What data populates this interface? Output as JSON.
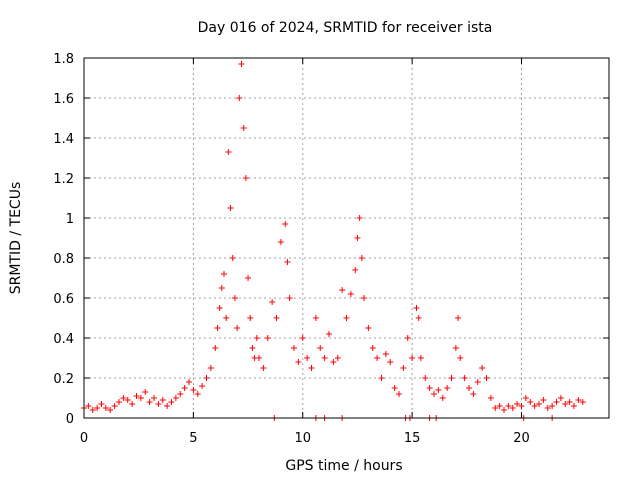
{
  "chart_data": {
    "type": "scatter",
    "title": "Day 016 of 2024, SRMTID for receiver ista",
    "xlabel": "GPS time / hours",
    "ylabel": "SRMTID / TECUs",
    "xlim": [
      0,
      24
    ],
    "ylim": [
      0,
      1.8
    ],
    "xticks": [
      0,
      5,
      10,
      15,
      20
    ],
    "yticks": [
      0,
      0.2,
      0.4,
      0.6,
      0.8,
      1,
      1.2,
      1.4,
      1.6,
      1.8
    ],
    "xtick_labels": [
      "0",
      "5",
      "10",
      "15",
      "20"
    ],
    "ytick_labels": [
      "0",
      "0.2",
      "0.4",
      "0.6",
      "0.8",
      "1",
      "1.2",
      "1.4",
      "1.6",
      "1.8"
    ],
    "grid": true,
    "marker": "plus",
    "color": "#ff0000",
    "series": [
      {
        "name": "SRMTID",
        "points": [
          [
            0.0,
            0.05
          ],
          [
            0.2,
            0.06
          ],
          [
            0.4,
            0.04
          ],
          [
            0.6,
            0.05
          ],
          [
            0.8,
            0.07
          ],
          [
            1.0,
            0.05
          ],
          [
            1.2,
            0.04
          ],
          [
            1.4,
            0.06
          ],
          [
            1.6,
            0.08
          ],
          [
            1.8,
            0.1
          ],
          [
            2.0,
            0.09
          ],
          [
            2.2,
            0.07
          ],
          [
            2.4,
            0.11
          ],
          [
            2.6,
            0.1
          ],
          [
            2.8,
            0.13
          ],
          [
            3.0,
            0.08
          ],
          [
            3.2,
            0.1
          ],
          [
            3.4,
            0.07
          ],
          [
            3.6,
            0.09
          ],
          [
            3.8,
            0.06
          ],
          [
            4.0,
            0.08
          ],
          [
            4.2,
            0.1
          ],
          [
            4.4,
            0.12
          ],
          [
            4.6,
            0.15
          ],
          [
            4.8,
            0.18
          ],
          [
            5.0,
            0.14
          ],
          [
            5.2,
            0.12
          ],
          [
            5.4,
            0.16
          ],
          [
            5.6,
            0.2
          ],
          [
            5.8,
            0.25
          ],
          [
            6.0,
            0.35
          ],
          [
            6.1,
            0.45
          ],
          [
            6.2,
            0.55
          ],
          [
            6.3,
            0.65
          ],
          [
            6.4,
            0.72
          ],
          [
            6.5,
            0.5
          ],
          [
            6.6,
            1.33
          ],
          [
            6.7,
            1.05
          ],
          [
            6.8,
            0.8
          ],
          [
            6.9,
            0.6
          ],
          [
            7.0,
            0.45
          ],
          [
            7.1,
            1.6
          ],
          [
            7.2,
            1.77
          ],
          [
            7.3,
            1.45
          ],
          [
            7.4,
            1.2
          ],
          [
            7.5,
            0.7
          ],
          [
            7.6,
            0.5
          ],
          [
            7.7,
            0.35
          ],
          [
            7.8,
            0.3
          ],
          [
            7.9,
            0.4
          ],
          [
            8.0,
            0.3
          ],
          [
            8.2,
            0.25
          ],
          [
            8.4,
            0.4
          ],
          [
            8.6,
            0.58
          ],
          [
            8.8,
            0.5
          ],
          [
            9.0,
            0.88
          ],
          [
            9.2,
            0.97
          ],
          [
            9.3,
            0.78
          ],
          [
            9.4,
            0.6
          ],
          [
            9.6,
            0.35
          ],
          [
            9.8,
            0.28
          ],
          [
            10.0,
            0.4
          ],
          [
            10.2,
            0.3
          ],
          [
            10.4,
            0.25
          ],
          [
            10.6,
            0.5
          ],
          [
            10.8,
            0.35
          ],
          [
            11.0,
            0.3
          ],
          [
            11.2,
            0.42
          ],
          [
            11.4,
            0.28
          ],
          [
            11.6,
            0.3
          ],
          [
            11.8,
            0.64
          ],
          [
            12.0,
            0.5
          ],
          [
            12.2,
            0.62
          ],
          [
            12.4,
            0.74
          ],
          [
            12.5,
            0.9
          ],
          [
            12.6,
            1.0
          ],
          [
            12.7,
            0.8
          ],
          [
            12.8,
            0.6
          ],
          [
            13.0,
            0.45
          ],
          [
            13.2,
            0.35
          ],
          [
            13.4,
            0.3
          ],
          [
            13.6,
            0.2
          ],
          [
            13.8,
            0.32
          ],
          [
            14.0,
            0.28
          ],
          [
            14.2,
            0.15
          ],
          [
            14.4,
            0.12
          ],
          [
            14.6,
            0.25
          ],
          [
            14.8,
            0.4
          ],
          [
            15.0,
            0.3
          ],
          [
            15.2,
            0.55
          ],
          [
            15.3,
            0.5
          ],
          [
            15.4,
            0.3
          ],
          [
            15.6,
            0.2
          ],
          [
            15.8,
            0.15
          ],
          [
            16.0,
            0.12
          ],
          [
            16.2,
            0.14
          ],
          [
            16.4,
            0.1
          ],
          [
            16.6,
            0.15
          ],
          [
            16.8,
            0.2
          ],
          [
            17.0,
            0.35
          ],
          [
            17.1,
            0.5
          ],
          [
            17.2,
            0.3
          ],
          [
            17.4,
            0.2
          ],
          [
            17.6,
            0.15
          ],
          [
            17.8,
            0.12
          ],
          [
            18.0,
            0.18
          ],
          [
            18.2,
            0.25
          ],
          [
            18.4,
            0.2
          ],
          [
            18.6,
            0.1
          ],
          [
            18.8,
            0.05
          ],
          [
            19.0,
            0.06
          ],
          [
            19.2,
            0.04
          ],
          [
            19.4,
            0.06
          ],
          [
            19.6,
            0.05
          ],
          [
            19.8,
            0.07
          ],
          [
            20.0,
            0.06
          ],
          [
            20.2,
            0.1
          ],
          [
            20.4,
            0.08
          ],
          [
            20.6,
            0.06
          ],
          [
            20.8,
            0.07
          ],
          [
            21.0,
            0.09
          ],
          [
            21.2,
            0.05
          ],
          [
            21.4,
            0.06
          ],
          [
            21.6,
            0.08
          ],
          [
            21.8,
            0.1
          ],
          [
            22.0,
            0.07
          ],
          [
            22.2,
            0.08
          ],
          [
            22.4,
            0.06
          ],
          [
            22.6,
            0.09
          ],
          [
            22.8,
            0.08
          ],
          [
            8.7,
            0.0
          ],
          [
            10.6,
            0.0
          ],
          [
            11.0,
            0.0
          ],
          [
            11.8,
            0.0
          ],
          [
            14.7,
            0.0
          ],
          [
            14.9,
            0.0
          ],
          [
            15.8,
            0.0
          ],
          [
            16.1,
            0.0
          ],
          [
            20.1,
            0.0
          ],
          [
            21.4,
            0.0
          ]
        ]
      }
    ]
  }
}
